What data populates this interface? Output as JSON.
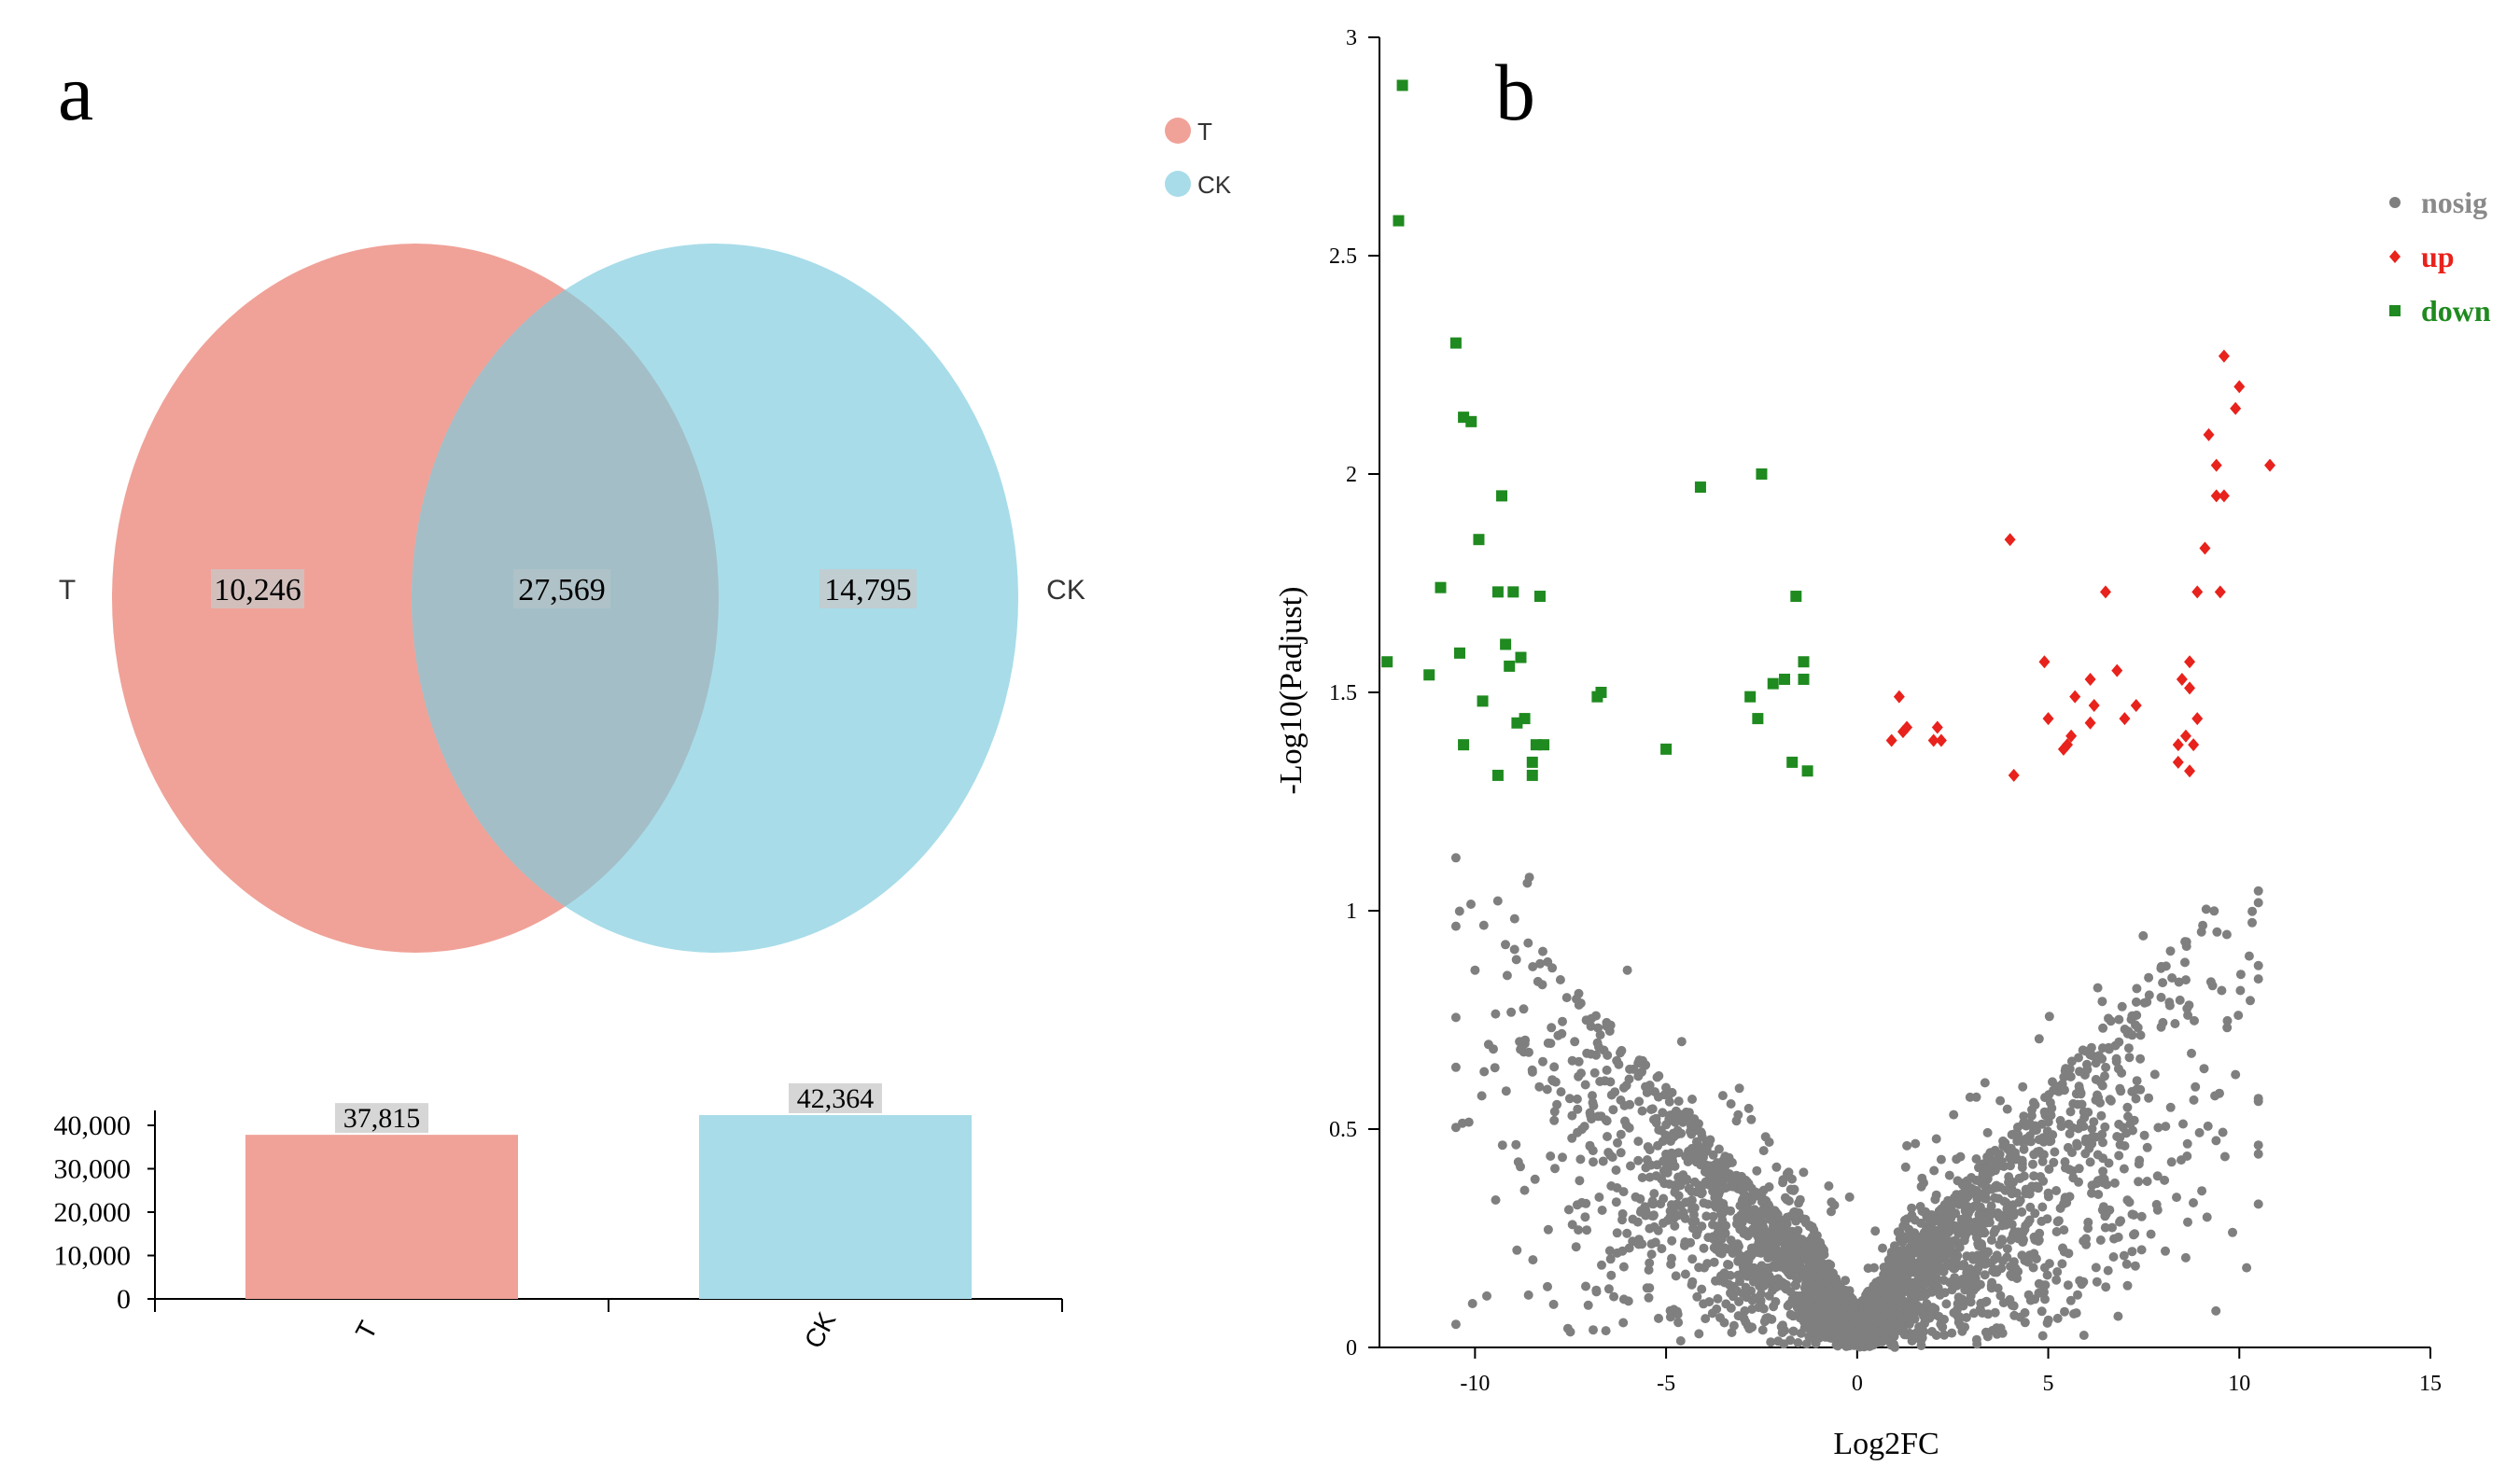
{
  "panel_a_label": "a",
  "panel_b_label": "b",
  "colors": {
    "T": "#f0a298",
    "CK": "#a8dce9",
    "overlap": "#a3bec7",
    "nosig": "#7f7f7f",
    "up": "#e8221c",
    "down": "#1f8a1f"
  },
  "chart_data": [
    {
      "type": "venn",
      "sets": [
        {
          "name": "T",
          "unique": "10,246"
        },
        {
          "name": "CK",
          "unique": "14,795"
        }
      ],
      "intersection": "27,569",
      "legend": [
        "T",
        "CK"
      ],
      "set_labels": [
        "T",
        "CK"
      ]
    },
    {
      "type": "bar",
      "categories": [
        "T",
        "CK"
      ],
      "values": [
        37815,
        42364
      ],
      "value_labels": [
        "37,815",
        "42,364"
      ],
      "ylim": [
        0,
        42364
      ],
      "yticks": [
        0,
        10000,
        20000,
        30000,
        40000
      ],
      "ytick_labels": [
        "0",
        "10,000",
        "20,000",
        "30,000",
        "40,000"
      ],
      "xlabel": "",
      "ylabel": ""
    },
    {
      "type": "scatter",
      "title": "",
      "xlabel": "Log2FC",
      "ylabel": "-Log10(Padjust)",
      "xlim": [
        -12.5,
        15
      ],
      "ylim": [
        0,
        3
      ],
      "xticks": [
        -10,
        -5,
        0,
        5,
        10,
        15
      ],
      "xtick_labels": [
        "-10",
        "-5",
        "0",
        "5",
        "10",
        "15"
      ],
      "yticks": [
        0,
        0.5,
        1,
        1.5,
        2,
        2.5,
        3
      ],
      "ytick_labels": [
        "0",
        "0.5",
        "1",
        "1.5",
        "2",
        "2.5",
        "3"
      ],
      "legend": [
        "nosig",
        "up",
        "down"
      ],
      "series": [
        {
          "name": "down",
          "points": [
            [
              -11.9,
              2.89
            ],
            [
              -12.0,
              2.58
            ],
            [
              -10.5,
              2.3
            ],
            [
              -10.3,
              2.13
            ],
            [
              -10.1,
              2.12
            ],
            [
              -9.3,
              1.95
            ],
            [
              -9.9,
              1.85
            ],
            [
              -10.9,
              1.74
            ],
            [
              -9.4,
              1.73
            ],
            [
              -9.0,
              1.73
            ],
            [
              -8.3,
              1.72
            ],
            [
              -12.3,
              1.57
            ],
            [
              -11.2,
              1.54
            ],
            [
              -10.4,
              1.59
            ],
            [
              -9.2,
              1.61
            ],
            [
              -9.1,
              1.56
            ],
            [
              -8.8,
              1.58
            ],
            [
              -9.8,
              1.48
            ],
            [
              -8.7,
              1.44
            ],
            [
              -8.9,
              1.43
            ],
            [
              -10.3,
              1.38
            ],
            [
              -8.4,
              1.38
            ],
            [
              -8.2,
              1.38
            ],
            [
              -8.5,
              1.34
            ],
            [
              -9.4,
              1.31
            ],
            [
              -8.5,
              1.31
            ],
            [
              -6.8,
              1.49
            ],
            [
              -6.7,
              1.5
            ],
            [
              -5.0,
              1.37
            ],
            [
              -4.1,
              1.97
            ],
            [
              -2.5,
              2.0
            ],
            [
              -1.6,
              1.72
            ],
            [
              -1.4,
              1.57
            ],
            [
              -1.4,
              1.53
            ],
            [
              -2.2,
              1.52
            ],
            [
              -1.9,
              1.53
            ],
            [
              -2.8,
              1.49
            ],
            [
              -2.6,
              1.44
            ],
            [
              -1.7,
              1.34
            ],
            [
              -1.3,
              1.32
            ]
          ]
        },
        {
          "name": "up",
          "points": [
            [
              9.6,
              2.27
            ],
            [
              10.0,
              2.2
            ],
            [
              9.9,
              2.15
            ],
            [
              9.2,
              2.09
            ],
            [
              9.4,
              2.02
            ],
            [
              10.8,
              2.02
            ],
            [
              9.4,
              1.95
            ],
            [
              9.6,
              1.95
            ],
            [
              4.0,
              1.85
            ],
            [
              9.1,
              1.83
            ],
            [
              8.9,
              1.73
            ],
            [
              9.5,
              1.73
            ],
            [
              6.5,
              1.73
            ],
            [
              4.9,
              1.57
            ],
            [
              8.7,
              1.57
            ],
            [
              6.1,
              1.53
            ],
            [
              8.5,
              1.53
            ],
            [
              6.8,
              1.55
            ],
            [
              8.7,
              1.51
            ],
            [
              5.7,
              1.49
            ],
            [
              7.3,
              1.47
            ],
            [
              6.2,
              1.47
            ],
            [
              5.0,
              1.44
            ],
            [
              7.0,
              1.44
            ],
            [
              6.1,
              1.43
            ],
            [
              8.9,
              1.44
            ],
            [
              5.6,
              1.4
            ],
            [
              5.5,
              1.38
            ],
            [
              8.6,
              1.4
            ],
            [
              8.4,
              1.38
            ],
            [
              5.4,
              1.37
            ],
            [
              8.8,
              1.38
            ],
            [
              8.4,
              1.34
            ],
            [
              8.7,
              1.32
            ],
            [
              1.1,
              1.49
            ],
            [
              1.3,
              1.42
            ],
            [
              1.2,
              1.41
            ],
            [
              2.1,
              1.42
            ],
            [
              2.0,
              1.39
            ],
            [
              2.2,
              1.39
            ],
            [
              0.9,
              1.39
            ],
            [
              4.1,
              1.31
            ]
          ]
        },
        {
          "name": "nosig",
          "description": "dense V-shaped cloud of non-significant genes, values up to about 1.3 on y and from about -12 to 11 on x"
        }
      ]
    }
  ]
}
